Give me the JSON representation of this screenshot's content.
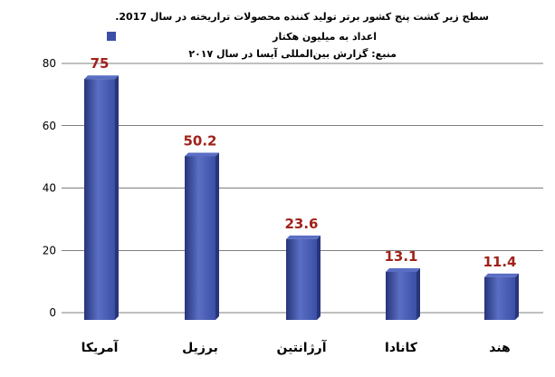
{
  "chart_data": {
    "type": "bar",
    "title": ".سطح زیر کشت پنج کشور برتر تولید کننده محصولات تراریخته در سال 2017",
    "legend_label": "اعداد به میلیون هکتار",
    "source": "منبع: گزارش بین‌المللی آیسا در سال ۲۰۱۷",
    "categories": [
      "آمریکا",
      "برزیل",
      "آرژانتین",
      "کانادا",
      "هند"
    ],
    "values": [
      75,
      50.2,
      23.6,
      13.1,
      11.4
    ],
    "value_labels": [
      "75",
      "50.2",
      "23.6",
      "13.1",
      "11.4"
    ],
    "ylim": [
      0,
      80
    ],
    "yticks": [
      "0",
      "20",
      "40",
      "60",
      "80"
    ],
    "ytick_values": [
      0,
      20,
      40,
      60,
      80
    ],
    "grid": true,
    "legend_position": "top-left",
    "colors": {
      "bar": "#3c4fa6",
      "bar_light": "#5a6ec4",
      "bar_dark": "#27357a",
      "data_label": "#a0221a",
      "grid": "#000000"
    }
  }
}
